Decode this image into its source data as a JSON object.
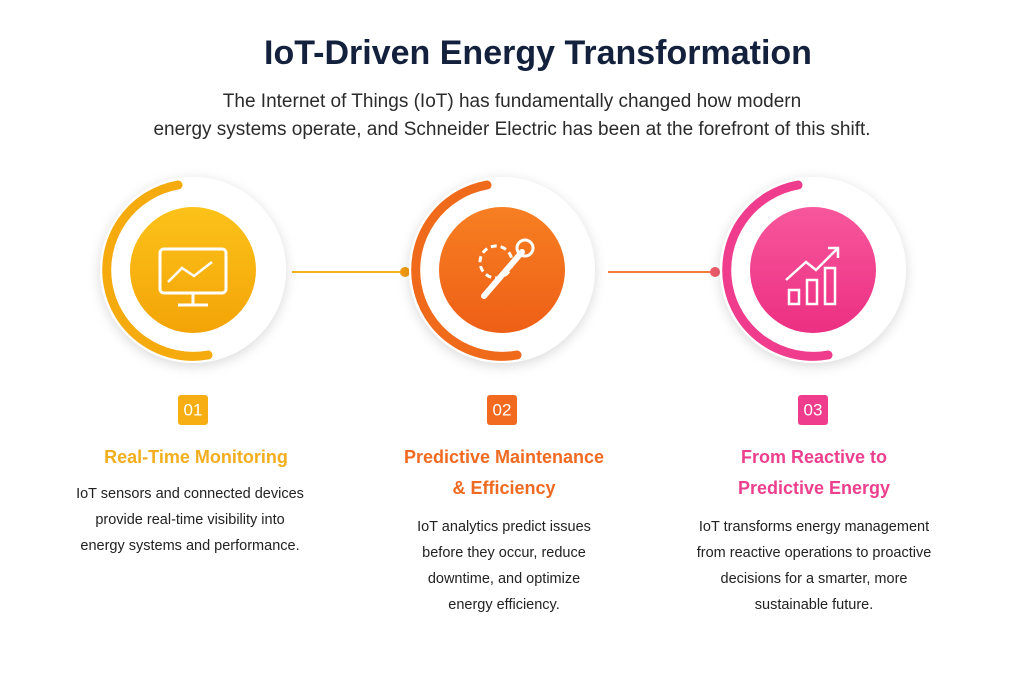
{
  "header": {
    "title": "IoT-Driven Energy Transformation",
    "subtitle": [
      "The Internet of Things (IoT) has fundamentally changed how modern",
      "energy systems operate, and Schneider Electric has been at the forefront of this shift."
    ]
  },
  "steps": [
    {
      "number": "01",
      "title": [
        "Real-Time Monitoring"
      ],
      "description": [
        "IoT sensors and connected devices",
        "provide real-time visibility into",
        "energy systems and performance."
      ]
    },
    {
      "number": "02",
      "title": [
        "Predictive Maintenance",
        "& Efficiency"
      ],
      "description": [
        "IoT analytics predict issues",
        "before they occur, reduce",
        "downtime, and optimize",
        "energy efficiency."
      ]
    },
    {
      "number": "03",
      "title": [
        "From Reactive to",
        "Predictive Energy"
      ],
      "description": [
        "IoT transforms energy management",
        "from reactive operations to proactive",
        "decisions for a smarter, more",
        "sustainable future."
      ]
    }
  ]
}
